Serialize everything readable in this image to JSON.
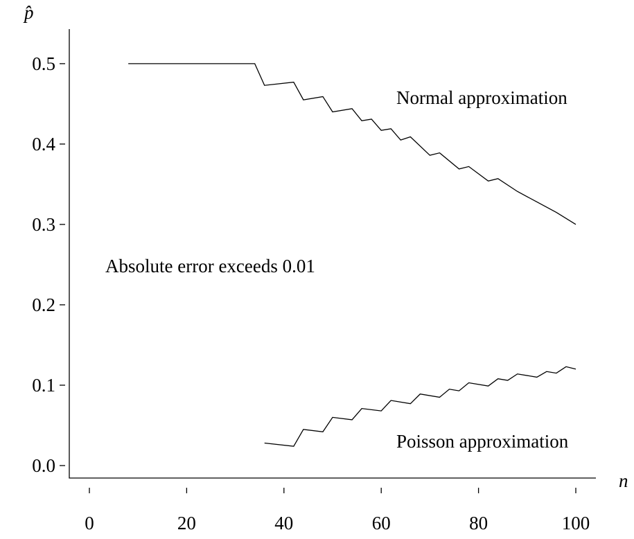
{
  "chart_data": {
    "type": "line",
    "xlabel": "n",
    "ylabel": "p̂",
    "annotation": "Absolute error exceeds 0.01",
    "series": [
      {
        "name": "Normal approximation",
        "color": "#000000",
        "x": [
          8,
          34,
          36,
          42,
          44,
          48,
          50,
          54,
          56,
          58,
          60,
          62,
          64,
          66,
          70,
          72,
          76,
          78,
          82,
          84,
          88,
          92,
          96,
          100
        ],
        "values": [
          0.5,
          0.5,
          0.473,
          0.477,
          0.455,
          0.459,
          0.44,
          0.444,
          0.429,
          0.431,
          0.417,
          0.419,
          0.405,
          0.409,
          0.386,
          0.389,
          0.369,
          0.372,
          0.354,
          0.357,
          0.341,
          0.328,
          0.315,
          0.3
        ]
      },
      {
        "name": "Poisson approximation",
        "color": "#000000",
        "x": [
          36,
          42,
          44,
          48,
          50,
          54,
          56,
          60,
          62,
          66,
          68,
          72,
          74,
          76,
          78,
          82,
          84,
          86,
          88,
          92,
          94,
          96,
          98,
          100
        ],
        "values": [
          0.028,
          0.024,
          0.045,
          0.042,
          0.06,
          0.057,
          0.071,
          0.068,
          0.081,
          0.077,
          0.089,
          0.085,
          0.095,
          0.093,
          0.103,
          0.099,
          0.108,
          0.106,
          0.114,
          0.11,
          0.117,
          0.115,
          0.123,
          0.12
        ]
      }
    ],
    "xlim": [
      -4.13,
      104.13
    ],
    "xticks": [
      0,
      20,
      40,
      60,
      80,
      100
    ],
    "ylim": [
      -0.0155,
      0.543
    ],
    "yticks": [
      {
        "value": 0,
        "label": "0.0"
      },
      0.1,
      0.2,
      0.3,
      0.4,
      0.5
    ]
  }
}
